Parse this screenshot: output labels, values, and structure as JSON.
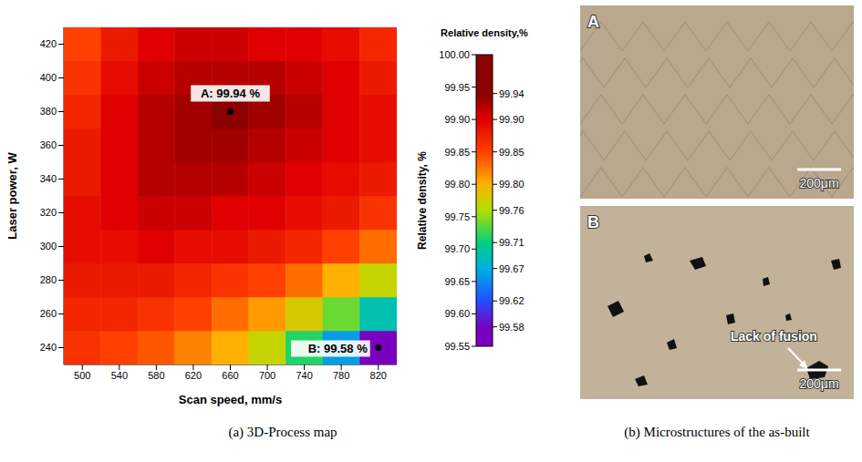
{
  "chart_data": {
    "type": "heatmap",
    "caption": "(a) 3D-Process map",
    "xlabel": "Scan speed, mm/s",
    "ylabel": "Laser power, W",
    "x": [
      500,
      540,
      580,
      620,
      660,
      700,
      740,
      780,
      820
    ],
    "y": [
      240,
      260,
      280,
      300,
      320,
      340,
      360,
      380,
      400,
      420
    ],
    "values": [
      [
        99.86,
        99.85,
        99.84,
        99.82,
        99.8,
        99.77,
        99.72,
        99.66,
        99.58
      ],
      [
        99.87,
        99.87,
        99.86,
        99.85,
        99.83,
        99.81,
        99.78,
        99.74,
        99.69
      ],
      [
        99.88,
        99.88,
        99.88,
        99.87,
        99.86,
        99.85,
        99.83,
        99.8,
        99.77
      ],
      [
        99.89,
        99.89,
        99.9,
        99.89,
        99.89,
        99.88,
        99.87,
        99.85,
        99.83
      ],
      [
        99.89,
        99.9,
        99.91,
        99.91,
        99.9,
        99.9,
        99.89,
        99.88,
        99.86
      ],
      [
        99.88,
        99.9,
        99.92,
        99.92,
        99.92,
        99.91,
        99.9,
        99.89,
        99.88
      ],
      [
        99.88,
        99.9,
        99.92,
        99.93,
        99.93,
        99.92,
        99.91,
        99.9,
        99.89
      ],
      [
        99.87,
        99.9,
        99.92,
        99.93,
        99.94,
        99.93,
        99.92,
        99.9,
        99.89
      ],
      [
        99.86,
        99.89,
        99.91,
        99.92,
        99.92,
        99.92,
        99.91,
        99.9,
        99.88
      ],
      [
        99.85,
        99.88,
        99.9,
        99.91,
        99.91,
        99.9,
        99.9,
        99.89,
        99.87
      ]
    ],
    "xlim": [
      480,
      840
    ],
    "xticks": [
      500,
      540,
      580,
      620,
      660,
      700,
      740,
      780,
      820
    ],
    "ylim": [
      230,
      430
    ],
    "yticks": [
      240,
      260,
      280,
      300,
      320,
      340,
      360,
      380,
      400,
      420
    ],
    "zlabel": "Relative density, %",
    "zlim": [
      99.55,
      100.0
    ],
    "zticks": [
      99.55,
      {
        "value": 99.6,
        "label": "99.60"
      },
      99.65,
      {
        "value": 99.7,
        "label": "99.70"
      },
      99.75,
      {
        "value": 99.8,
        "label": "99.80"
      },
      99.85,
      {
        "value": 99.9,
        "label": "99.90"
      },
      99.95,
      {
        "value": 100,
        "label": "100.00"
      }
    ],
    "colorbar": {
      "title": "Relative density,%",
      "range": [
        99.58,
        99.94
      ],
      "ticks": [
        99.58,
        99.62,
        99.67,
        99.71,
        99.76,
        {
          "value": 99.8,
          "label": "99.80"
        },
        99.85,
        {
          "value": 99.9,
          "label": "99.90"
        },
        99.94
      ],
      "colors": [
        "#7a00c0",
        "#2050ff",
        "#00b0e0",
        "#00d080",
        "#b0e000",
        "#ffb000",
        "#ff4000",
        "#e00000",
        "#8b0000"
      ]
    },
    "annotations": [
      {
        "text": "A: 99.94 %",
        "x": 660,
        "y": 380
      },
      {
        "text": "B: 99.58 %",
        "x": 820,
        "y": 240
      }
    ]
  },
  "micrographs": {
    "caption": "(b) Microstructures of the as-built",
    "panels": [
      {
        "label": "A",
        "scale_bar": "200μm"
      },
      {
        "label": "B",
        "scale_bar": "200μm",
        "annotation": "Lack of fusion"
      }
    ]
  }
}
